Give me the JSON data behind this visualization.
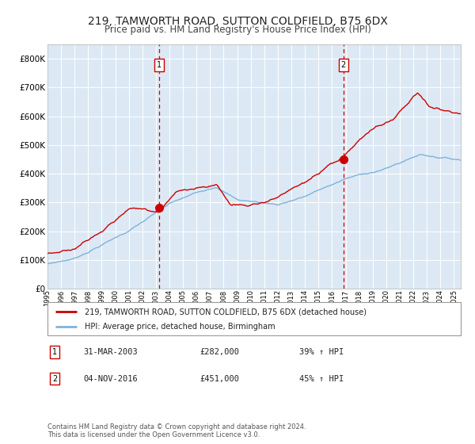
{
  "title": "219, TAMWORTH ROAD, SUTTON COLDFIELD, B75 6DX",
  "subtitle": "Price paid vs. HM Land Registry's House Price Index (HPI)",
  "title_fontsize": 10,
  "subtitle_fontsize": 8.5,
  "background_color": "#ffffff",
  "plot_bg_color": "#dce9f5",
  "grid_color": "#ffffff",
  "red_line_color": "#cc0000",
  "blue_line_color": "#7fb3d9",
  "ylim": [
    0,
    850000
  ],
  "yticks": [
    0,
    100000,
    200000,
    300000,
    400000,
    500000,
    600000,
    700000,
    800000
  ],
  "ytick_labels": [
    "£0",
    "£100K",
    "£200K",
    "£300K",
    "£400K",
    "£500K",
    "£600K",
    "£700K",
    "£800K"
  ],
  "legend_label_red": "219, TAMWORTH ROAD, SUTTON COLDFIELD, B75 6DX (detached house)",
  "legend_label_blue": "HPI: Average price, detached house, Birmingham",
  "annotation1_date": "31-MAR-2003",
  "annotation1_price": "£282,000",
  "annotation1_hpi": "39% ↑ HPI",
  "annotation2_date": "04-NOV-2016",
  "annotation2_price": "£451,000",
  "annotation2_hpi": "45% ↑ HPI",
  "footnote": "Contains HM Land Registry data © Crown copyright and database right 2024.\nThis data is licensed under the Open Government Licence v3.0.",
  "vline1_x_year": 2003.25,
  "vline2_x_year": 2016.84,
  "dot1_y": 282000,
  "dot2_y": 451000,
  "xlim_start": 1995,
  "xlim_end": 2025.5
}
